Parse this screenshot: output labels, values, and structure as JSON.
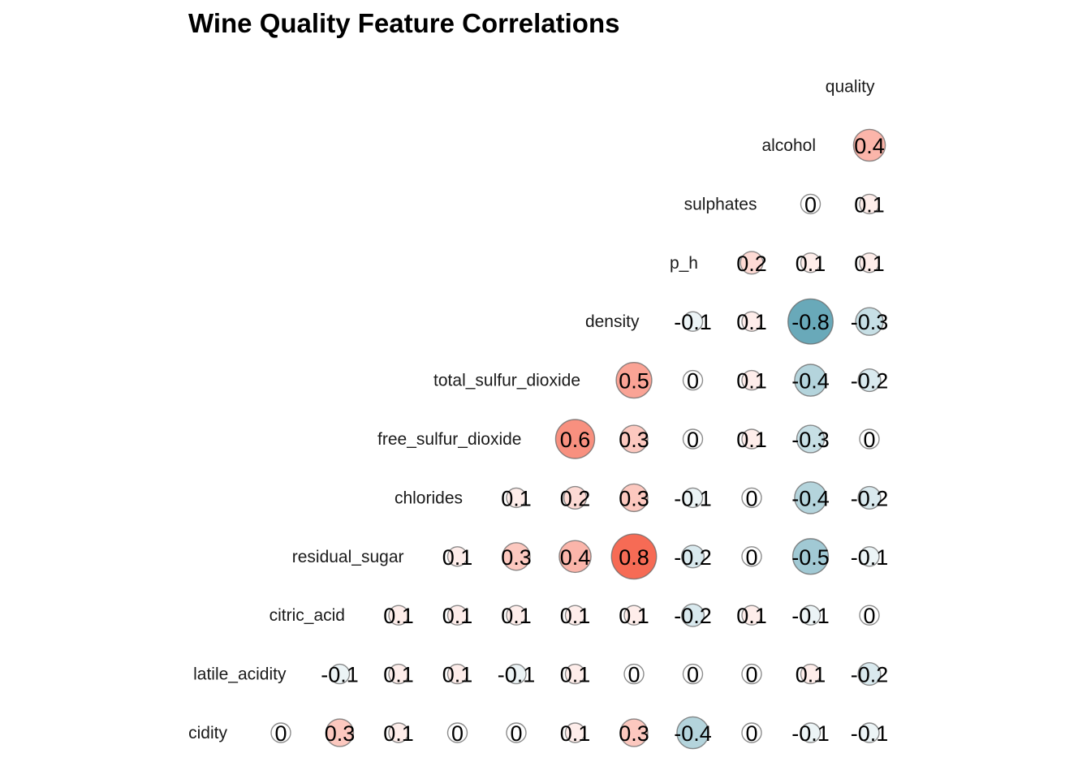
{
  "chart_data": {
    "type": "heatmap",
    "title": "Wine Quality Feature Correlations",
    "variables": [
      "cidity",
      "latile_acidity",
      "citric_acid",
      "residual_sugar",
      "chlorides",
      "free_sulfur_dioxide",
      "total_sulfur_dioxide",
      "density",
      "p_h",
      "sulphates",
      "alcohol",
      "quality"
    ],
    "rows": [
      {
        "variable": "alcohol",
        "values": [
          "0.4"
        ]
      },
      {
        "variable": "sulphates",
        "values": [
          "0",
          "0.1"
        ]
      },
      {
        "variable": "p_h",
        "values": [
          "0.2",
          "0.1",
          "0.1"
        ]
      },
      {
        "variable": "density",
        "values": [
          "-0.1",
          "0.1",
          "-0.8",
          "-0.3"
        ]
      },
      {
        "variable": "total_sulfur_dioxide",
        "values": [
          "0.5",
          "0",
          "0.1",
          "-0.4",
          "-0.2"
        ]
      },
      {
        "variable": "free_sulfur_dioxide",
        "values": [
          "0.6",
          "0.3",
          "0",
          "0.1",
          "-0.3",
          "0"
        ]
      },
      {
        "variable": "chlorides",
        "values": [
          "0.1",
          "0.2",
          "0.3",
          "-0.1",
          "0",
          "-0.4",
          "-0.2"
        ]
      },
      {
        "variable": "residual_sugar",
        "values": [
          "0.1",
          "0.3",
          "0.4",
          "0.8",
          "-0.2",
          "0",
          "-0.5",
          "-0.1"
        ]
      },
      {
        "variable": "citric_acid",
        "values": [
          "0.1",
          "0.1",
          "0.1",
          "0.1",
          "0.1",
          "-0.2",
          "0.1",
          "-0.1",
          "0"
        ]
      },
      {
        "variable": "latile_acidity",
        "values": [
          "-0.1",
          "0.1",
          "0.1",
          "-0.1",
          "0.1",
          "0",
          "0",
          "0",
          "0.1",
          "-0.2"
        ]
      },
      {
        "variable": "cidity",
        "values": [
          "0",
          "0.3",
          "0.1",
          "0",
          "0",
          "0.1",
          "0.3",
          "-0.4",
          "0",
          "-0.1",
          "-0.1"
        ]
      }
    ],
    "color_low": "#4393a8",
    "color_mid": "#ffffff",
    "color_high": "#f4462a",
    "legend": "none",
    "grid": false
  }
}
